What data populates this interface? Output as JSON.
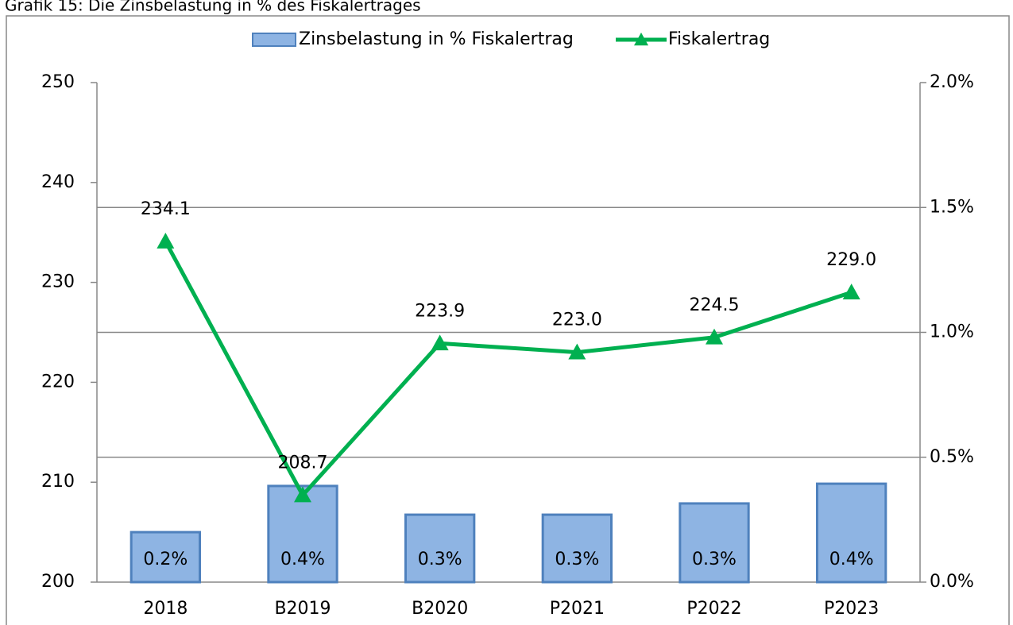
{
  "chart_data": {
    "type": "combo",
    "title": "Grafik 15: Die Zinsbelastung in % des Fiskalertrages",
    "categories": [
      "2018",
      "B2019",
      "B2020",
      "P2021",
      "P2022",
      "P2023"
    ],
    "series": [
      {
        "name": "Zinsbelastung in % Fiskalertrag",
        "type": "bar",
        "axis": "y2",
        "color": "#8eb4e3",
        "edge_color": "#4f81bd",
        "values": [
          0.2,
          0.385,
          0.27,
          0.27,
          0.315,
          0.394
        ],
        "value_labels": [
          "0.2%",
          "0.4%",
          "0.3%",
          "0.3%",
          "0.3%",
          "0.4%"
        ]
      },
      {
        "name": "Fiskalertrag",
        "type": "line",
        "axis": "y",
        "color": "#00b050",
        "values": [
          234.1,
          208.7,
          223.9,
          223.0,
          224.5,
          229.0
        ],
        "value_labels": [
          "234.1",
          "208.7",
          "223.9",
          "223.0",
          "224.5",
          "229.0"
        ]
      }
    ],
    "ylim": [
      200,
      250
    ],
    "yticks": [
      200,
      210,
      220,
      230,
      240,
      250
    ],
    "y2lim": [
      0,
      2.0
    ],
    "y2ticks": [
      {
        "value": 0,
        "label": "0.0%"
      },
      {
        "value": 0.5,
        "label": "0.5%"
      },
      {
        "value": 1.0,
        "label": "1.0%"
      },
      {
        "value": 1.5,
        "label": "1.5%"
      },
      {
        "value": 2.0,
        "label": "2.0%"
      }
    ],
    "grid": true,
    "legend": "top"
  }
}
